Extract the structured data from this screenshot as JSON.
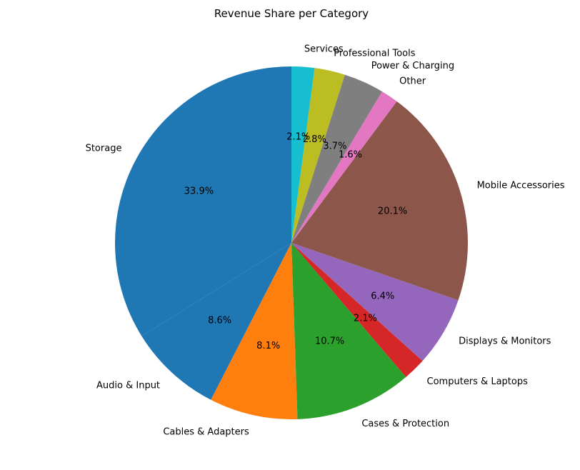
{
  "chart_data": {
    "type": "pie",
    "title": "Revenue Share per Category",
    "start_angle_deg": 90,
    "direction": "counterclockwise",
    "slices": [
      {
        "label": "Storage",
        "value": 33.9,
        "pct_label": "33.9%",
        "color": "#1f77b4"
      },
      {
        "label": "Audio & Input",
        "value": 8.6,
        "pct_label": "8.6%",
        "color": "#1f77b4"
      },
      {
        "label": "Cables & Adapters",
        "value": 8.1,
        "pct_label": "8.1%",
        "color": "#ff7f0e"
      },
      {
        "label": "Cases & Protection",
        "value": 10.7,
        "pct_label": "10.7%",
        "color": "#2ca02c"
      },
      {
        "label": "Computers & Laptops",
        "value": 2.1,
        "pct_label": "2.1%",
        "color": "#d62728"
      },
      {
        "label": "Displays & Monitors",
        "value": 6.4,
        "pct_label": "6.4%",
        "color": "#9467bd"
      },
      {
        "label": "Mobile Accessories",
        "value": 20.1,
        "pct_label": "20.1%",
        "color": "#8c564b"
      },
      {
        "label": "Other",
        "value": 1.6,
        "pct_label": "1.6%",
        "color": "#e377c2"
      },
      {
        "label": "Power & Charging",
        "value": 3.7,
        "pct_label": "3.7%",
        "color": "#7f7f7f"
      },
      {
        "label": "Professional Tools",
        "value": 2.8,
        "pct_label": "2.8%",
        "color": "#bcbd22"
      },
      {
        "label": "Services",
        "value": 2.1,
        "pct_label": "2.1%",
        "color": "#17becf"
      }
    ]
  }
}
